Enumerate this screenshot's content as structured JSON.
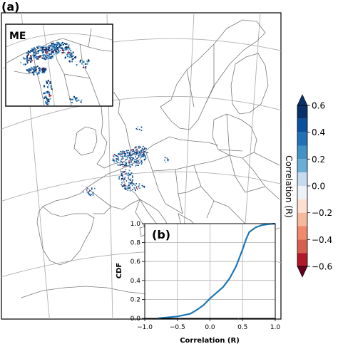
{
  "panels": {
    "a": "(a)",
    "b": "(b)",
    "inset": "ME"
  },
  "colors": {
    "coast": "#7a7a7a",
    "grid": "#b0b0b0",
    "cdf_line": "#1f77b4",
    "point_high": "#08306b",
    "point_mid": "#2171b5",
    "point_low": "#6baed6",
    "point_neg": "#b2182b"
  },
  "colorbar": {
    "label": "Correlation (R)",
    "ticks": [
      "0.6",
      "0.4",
      "0.2",
      "0.0",
      "−0.2",
      "−0.4",
      "−0.6"
    ],
    "range": [
      -0.6,
      0.6
    ],
    "bins": [
      {
        "from": 0.5,
        "to": 0.6,
        "color": "#08306b"
      },
      {
        "from": 0.4,
        "to": 0.5,
        "color": "#08519c"
      },
      {
        "from": 0.3,
        "to": 0.4,
        "color": "#2171b5"
      },
      {
        "from": 0.2,
        "to": 0.3,
        "color": "#4292c6"
      },
      {
        "from": 0.1,
        "to": 0.2,
        "color": "#6baed6"
      },
      {
        "from": 0.0,
        "to": 0.1,
        "color": "#c6dbef"
      },
      {
        "from": -0.1,
        "to": 0.0,
        "color": "#eef3fa"
      },
      {
        "from": -0.2,
        "to": -0.1,
        "color": "#fde0d2"
      },
      {
        "from": -0.3,
        "to": -0.2,
        "color": "#f7b99e"
      },
      {
        "from": -0.4,
        "to": -0.3,
        "color": "#ef8a6b"
      },
      {
        "from": -0.5,
        "to": -0.4,
        "color": "#d6604d"
      },
      {
        "from": -0.6,
        "to": -0.5,
        "color": "#b2182b"
      }
    ],
    "extend_top_color": "#08306b",
    "extend_bottom_color": "#67001f"
  },
  "chart_data": {
    "type": "line",
    "xlabel": "Correlation (R)",
    "ylabel": "CDF",
    "xlim": [
      -1.0,
      1.0
    ],
    "ylim": [
      0.0,
      1.0
    ],
    "xticks": [
      "−1.0",
      "−0.5",
      "0.0",
      "0.5",
      "1.0"
    ],
    "yticks": [
      "0.0",
      "0.2",
      "0.4",
      "0.6",
      "0.8",
      "1.0"
    ],
    "grid": true,
    "series": [
      {
        "x": [
          -0.8,
          -0.5,
          -0.3,
          -0.2,
          -0.1,
          0.0,
          0.1,
          0.2,
          0.3,
          0.4,
          0.5,
          0.55,
          0.6,
          0.7,
          0.8,
          0.9,
          1.0
        ],
        "y": [
          0.0,
          0.02,
          0.05,
          0.09,
          0.14,
          0.21,
          0.27,
          0.33,
          0.42,
          0.55,
          0.73,
          0.83,
          0.91,
          0.96,
          0.985,
          0.995,
          1.0
        ]
      }
    ]
  }
}
